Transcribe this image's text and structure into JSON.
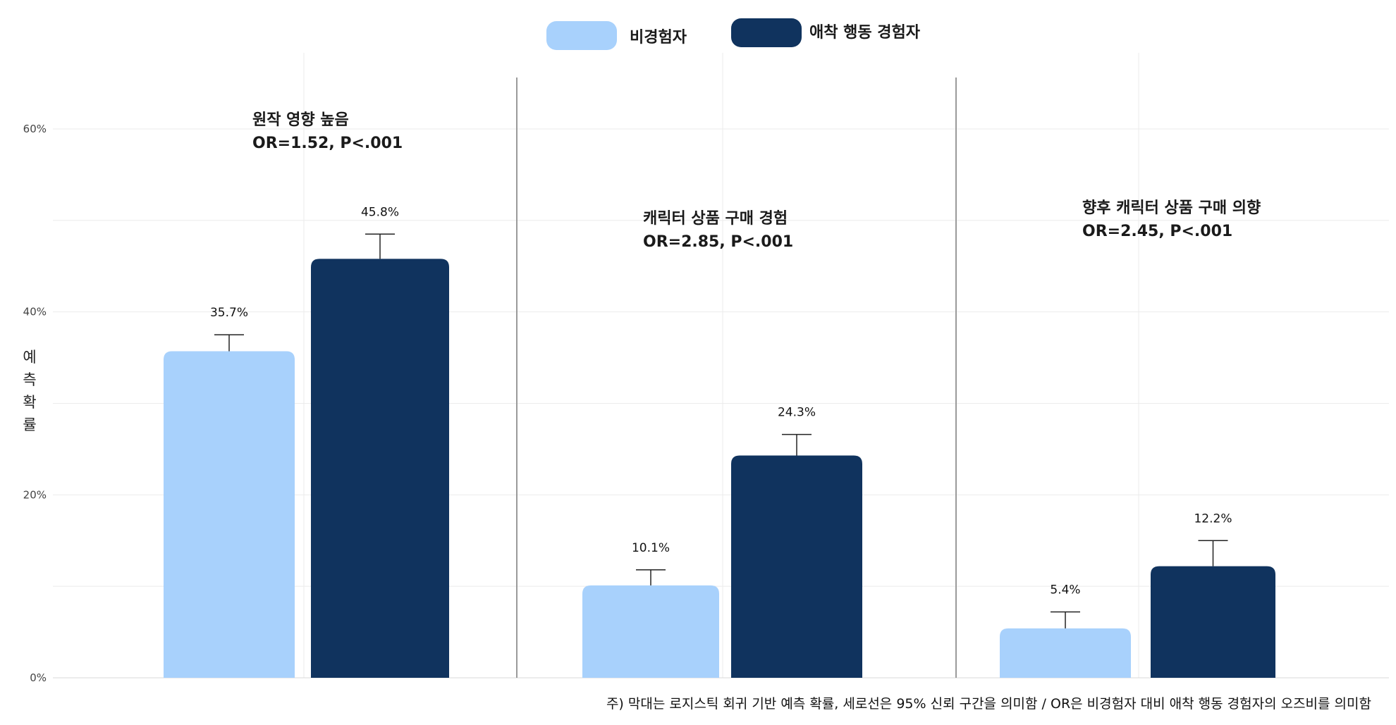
{
  "chart_data": {
    "type": "bar",
    "ylabel": "예측확률",
    "ylim": [
      0,
      60
    ],
    "yticks": [
      "0%",
      "20%",
      "40%",
      "60%"
    ],
    "legend_position": "top-center",
    "grid": true,
    "colors": {
      "non_experienced": "#a8d1fc",
      "experienced": "#10335e"
    },
    "series": [
      {
        "name": "비경험자",
        "color": "#a8d1fc",
        "values": [
          35.7,
          10.1,
          5.4
        ]
      },
      {
        "name": "애착 행동 경험자",
        "color": "#10335e",
        "values": [
          45.8,
          24.3,
          12.2
        ]
      }
    ],
    "value_labels": [
      [
        "35.7%",
        "10.1%",
        "5.4%"
      ],
      [
        "45.8%",
        "24.3%",
        "12.2%"
      ]
    ],
    "ci_upper": [
      [
        37.5,
        11.8,
        7.2
      ],
      [
        48.5,
        26.6,
        15.0
      ]
    ],
    "panels": [
      {
        "title": "원작 영향 높음",
        "stat": "OR=1.52, P<.001"
      },
      {
        "title": "캐릭터 상품 구매 경험",
        "stat": "OR=2.85, P<.001"
      },
      {
        "title": "향후 캐릭터 상품 구매 의향",
        "stat": "OR=2.45, P<.001"
      }
    ],
    "note": "주) 막대는 로지스틱 회귀 기반 예측 확률, 세로선은 95% 신뢰 구간을 의미함 /  OR은 비경험자 대비 애착 행동 경험자의 오즈비를 의미함"
  }
}
